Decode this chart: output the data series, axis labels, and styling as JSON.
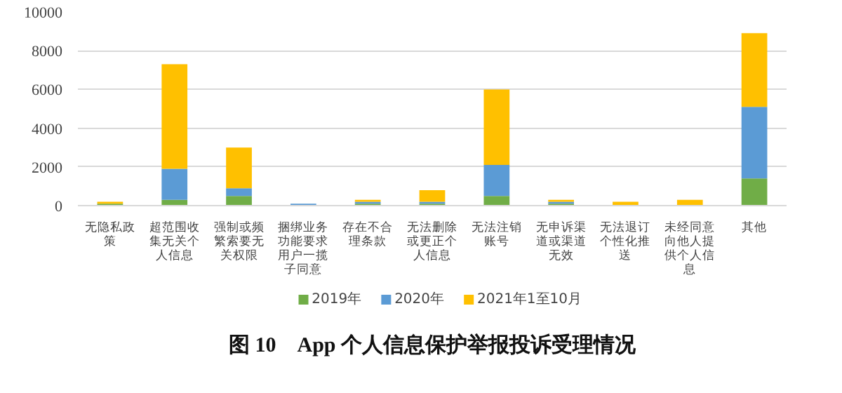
{
  "chart_data": {
    "type": "bar",
    "stacked": true,
    "title": "图 10　App 个人信息保护举报投诉受理情况",
    "categories": [
      "无隐私政策",
      "超范围收集无关个人信息",
      "强制或频繁索要无关权限",
      "捆绑业务功能要求用户一揽子同意",
      "存在不合理条款",
      "无法删除或更正个人信息",
      "无法注销账号",
      "无申诉渠道或渠道无效",
      "无法退订个性化推送",
      "未经同意向他人提供个人信息",
      "其他"
    ],
    "series": [
      {
        "name": "2019年",
        "color": "#70ad47",
        "values": [
          100,
          300,
          500,
          0,
          100,
          100,
          500,
          100,
          0,
          0,
          1400
        ]
      },
      {
        "name": "2020年",
        "color": "#5b9bd5",
        "values": [
          0,
          1600,
          400,
          100,
          100,
          100,
          1600,
          100,
          0,
          0,
          3700
        ]
      },
      {
        "name": "2021年1至10月",
        "color": "#ffc000",
        "values": [
          100,
          5400,
          2100,
          0,
          100,
          600,
          3900,
          100,
          200,
          300,
          3800
        ]
      }
    ],
    "ylim": [
      0,
      10000
    ],
    "yticks": [
      0,
      2000,
      4000,
      6000,
      8000,
      10000
    ],
    "grid": "y",
    "legend": "bottom"
  }
}
